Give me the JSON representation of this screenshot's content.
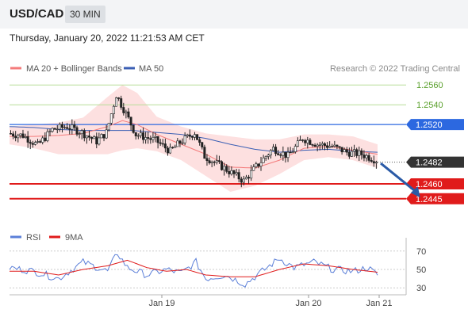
{
  "header": {
    "symbol": "USD/CAD",
    "timeframe": "30 MIN",
    "datetime": "Thursday, January 20, 2022 11:21:53 AM CET"
  },
  "legend": {
    "ma20": "MA 20 + Bollinger Bands",
    "ma50": "MA 50",
    "credit": "Research © 2022 Trading Central"
  },
  "rsi_legend": {
    "rsi": "RSI",
    "ma": "9MA"
  },
  "colors": {
    "candle": "#222222",
    "ma20": "#f47b7b",
    "ma50": "#3b5fb4",
    "band": "#fde0e0",
    "resistance": "#7bc043",
    "pivot": "#2c68e0",
    "support": "#e01b1b",
    "arrow": "#2a5aa6",
    "rsi": "#5b7fd8",
    "rsi_ma": "#e01b1b"
  },
  "chart_data": {
    "type": "candlestick",
    "x_ticks": [
      "Jan 19",
      "Jan 20",
      "Jan 21"
    ],
    "price_axis": {
      "min": 1.2436,
      "max": 1.2569
    },
    "levels": [
      {
        "label": "1.2560",
        "value": 1.256,
        "kind": "resistance"
      },
      {
        "label": "1.2540",
        "value": 1.254,
        "kind": "resistance"
      },
      {
        "label": "1.2520",
        "value": 1.252,
        "kind": "pivot"
      },
      {
        "label": "1.2482",
        "value": 1.2482,
        "kind": "last"
      },
      {
        "label": "1.2460",
        "value": 1.246,
        "kind": "support"
      },
      {
        "label": "1.2445",
        "value": 1.2445,
        "kind": "support"
      }
    ],
    "price_segments": [
      [
        0,
        1.2511
      ],
      [
        6,
        1.2509
      ],
      [
        12,
        1.2499
      ],
      [
        18,
        1.2515
      ],
      [
        24,
        1.2518
      ],
      [
        30,
        1.2512
      ],
      [
        36,
        1.2503
      ],
      [
        40,
        1.2512
      ],
      [
        44,
        1.255
      ],
      [
        48,
        1.2531
      ],
      [
        52,
        1.251
      ],
      [
        60,
        1.2504
      ],
      [
        66,
        1.2493
      ],
      [
        70,
        1.2502
      ],
      [
        76,
        1.2512
      ],
      [
        80,
        1.2488
      ],
      [
        88,
        1.2476
      ],
      [
        96,
        1.2463
      ],
      [
        102,
        1.248
      ],
      [
        108,
        1.2496
      ],
      [
        114,
        1.2488
      ],
      [
        120,
        1.2506
      ],
      [
        126,
        1.25
      ],
      [
        132,
        1.2498
      ],
      [
        138,
        1.2492
      ],
      [
        144,
        1.249
      ],
      [
        150,
        1.2484
      ]
    ],
    "ma20_points": [
      [
        0,
        1.2508
      ],
      [
        10,
        1.2508
      ],
      [
        20,
        1.2509
      ],
      [
        30,
        1.2511
      ],
      [
        40,
        1.2518
      ],
      [
        46,
        1.2524
      ],
      [
        52,
        1.252
      ],
      [
        60,
        1.251
      ],
      [
        70,
        1.25
      ],
      [
        80,
        1.249
      ],
      [
        90,
        1.2477
      ],
      [
        100,
        1.2476
      ],
      [
        110,
        1.2484
      ],
      [
        120,
        1.2496
      ],
      [
        130,
        1.2498
      ],
      [
        140,
        1.2494
      ],
      [
        150,
        1.249
      ]
    ],
    "ma50_points": [
      [
        0,
        1.2518
      ],
      [
        10,
        1.2517
      ],
      [
        20,
        1.2515
      ],
      [
        30,
        1.2514
      ],
      [
        40,
        1.2514
      ],
      [
        50,
        1.2514
      ],
      [
        60,
        1.2512
      ],
      [
        70,
        1.251
      ],
      [
        80,
        1.2506
      ],
      [
        90,
        1.25
      ],
      [
        100,
        1.2495
      ],
      [
        110,
        1.2492
      ],
      [
        120,
        1.2494
      ],
      [
        130,
        1.2495
      ],
      [
        140,
        1.2493
      ],
      [
        150,
        1.2492
      ]
    ],
    "bb_upper": [
      [
        0,
        1.2518
      ],
      [
        10,
        1.252
      ],
      [
        20,
        1.2522
      ],
      [
        30,
        1.2527
      ],
      [
        40,
        1.2548
      ],
      [
        46,
        1.256
      ],
      [
        52,
        1.2552
      ],
      [
        60,
        1.2528
      ],
      [
        70,
        1.2518
      ],
      [
        80,
        1.2511
      ],
      [
        90,
        1.2508
      ],
      [
        100,
        1.2505
      ],
      [
        110,
        1.2505
      ],
      [
        120,
        1.251
      ],
      [
        130,
        1.251
      ],
      [
        140,
        1.2508
      ],
      [
        150,
        1.25
      ]
    ],
    "bb_lower": [
      [
        0,
        1.25
      ],
      [
        10,
        1.2496
      ],
      [
        20,
        1.249
      ],
      [
        30,
        1.249
      ],
      [
        40,
        1.249
      ],
      [
        46,
        1.2494
      ],
      [
        52,
        1.2496
      ],
      [
        60,
        1.2493
      ],
      [
        70,
        1.2484
      ],
      [
        80,
        1.2468
      ],
      [
        90,
        1.2452
      ],
      [
        100,
        1.2458
      ],
      [
        110,
        1.247
      ],
      [
        120,
        1.2484
      ],
      [
        130,
        1.2487
      ],
      [
        140,
        1.2484
      ],
      [
        150,
        1.2476
      ]
    ],
    "rsi_axis": {
      "ticks": [
        70,
        50,
        30
      ],
      "min": 25,
      "max": 75
    },
    "rsi_segments": [
      [
        0,
        52
      ],
      [
        10,
        48
      ],
      [
        20,
        40
      ],
      [
        30,
        58
      ],
      [
        40,
        48
      ],
      [
        44,
        68
      ],
      [
        48,
        52
      ],
      [
        56,
        44
      ],
      [
        64,
        50
      ],
      [
        70,
        46
      ],
      [
        76,
        58
      ],
      [
        80,
        40
      ],
      [
        88,
        44
      ],
      [
        96,
        34
      ],
      [
        104,
        50
      ],
      [
        110,
        62
      ],
      [
        116,
        52
      ],
      [
        124,
        58
      ],
      [
        132,
        50
      ],
      [
        140,
        48
      ],
      [
        146,
        52
      ],
      [
        150,
        44
      ]
    ],
    "rsi_ma_points": [
      [
        0,
        48
      ],
      [
        10,
        48
      ],
      [
        20,
        44
      ],
      [
        30,
        50
      ],
      [
        40,
        54
      ],
      [
        48,
        60
      ],
      [
        56,
        52
      ],
      [
        64,
        48
      ],
      [
        72,
        50
      ],
      [
        80,
        44
      ],
      [
        90,
        42
      ],
      [
        100,
        42
      ],
      [
        110,
        50
      ],
      [
        120,
        56
      ],
      [
        130,
        54
      ],
      [
        140,
        50
      ],
      [
        150,
        47
      ]
    ],
    "forecast_arrow": {
      "from": [
        150,
        1.2484
      ],
      "to": [
        158,
        1.2447
      ]
    }
  }
}
